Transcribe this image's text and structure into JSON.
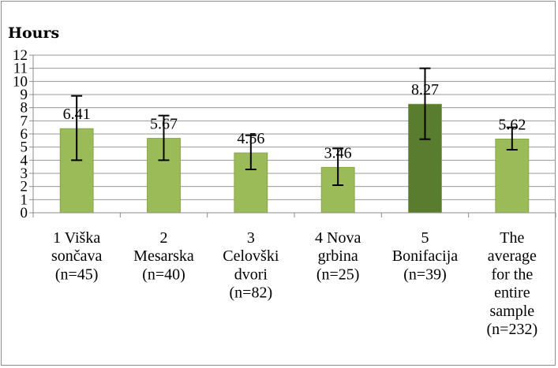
{
  "chart_data": {
    "type": "bar",
    "title": "",
    "xlabel": "",
    "ylabel": "Hours",
    "ylim": [
      0,
      12
    ],
    "yticks": [
      0,
      1,
      2,
      3,
      4,
      5,
      6,
      7,
      8,
      9,
      10,
      11,
      12
    ],
    "grid": true,
    "legend": "none",
    "categories": [
      [
        "1  Viška",
        "sončava",
        "(n=45)"
      ],
      [
        "2",
        "Mesarska",
        "(n=40)"
      ],
      [
        "3",
        "Celovški",
        "dvori",
        "(n=82)"
      ],
      [
        "4  Nova",
        "grbina",
        "(n=25)"
      ],
      [
        "5",
        "Bonifacija",
        "(n=39)"
      ],
      [
        "The",
        "average",
        "for the",
        "entire",
        "sample",
        "(n=232)"
      ]
    ],
    "values": [
      6.41,
      5.67,
      4.56,
      3.46,
      8.27,
      5.62
    ],
    "data_labels": [
      "6.41",
      "5.67",
      "4.56",
      "3.46",
      "8.27",
      "5.62"
    ],
    "error_low": [
      4.0,
      4.0,
      3.3,
      2.1,
      5.6,
      4.8
    ],
    "error_high": [
      8.9,
      7.4,
      5.9,
      4.9,
      11.0,
      6.5
    ],
    "colors": {
      "bar": "#9bbb59",
      "bar_highlight": "#5a7c2e",
      "bar_edge": "#7f9f45",
      "grid": "#9a9a9a",
      "axis": "#8c8c8c",
      "error": "#000000"
    },
    "highlight_index": 4
  }
}
